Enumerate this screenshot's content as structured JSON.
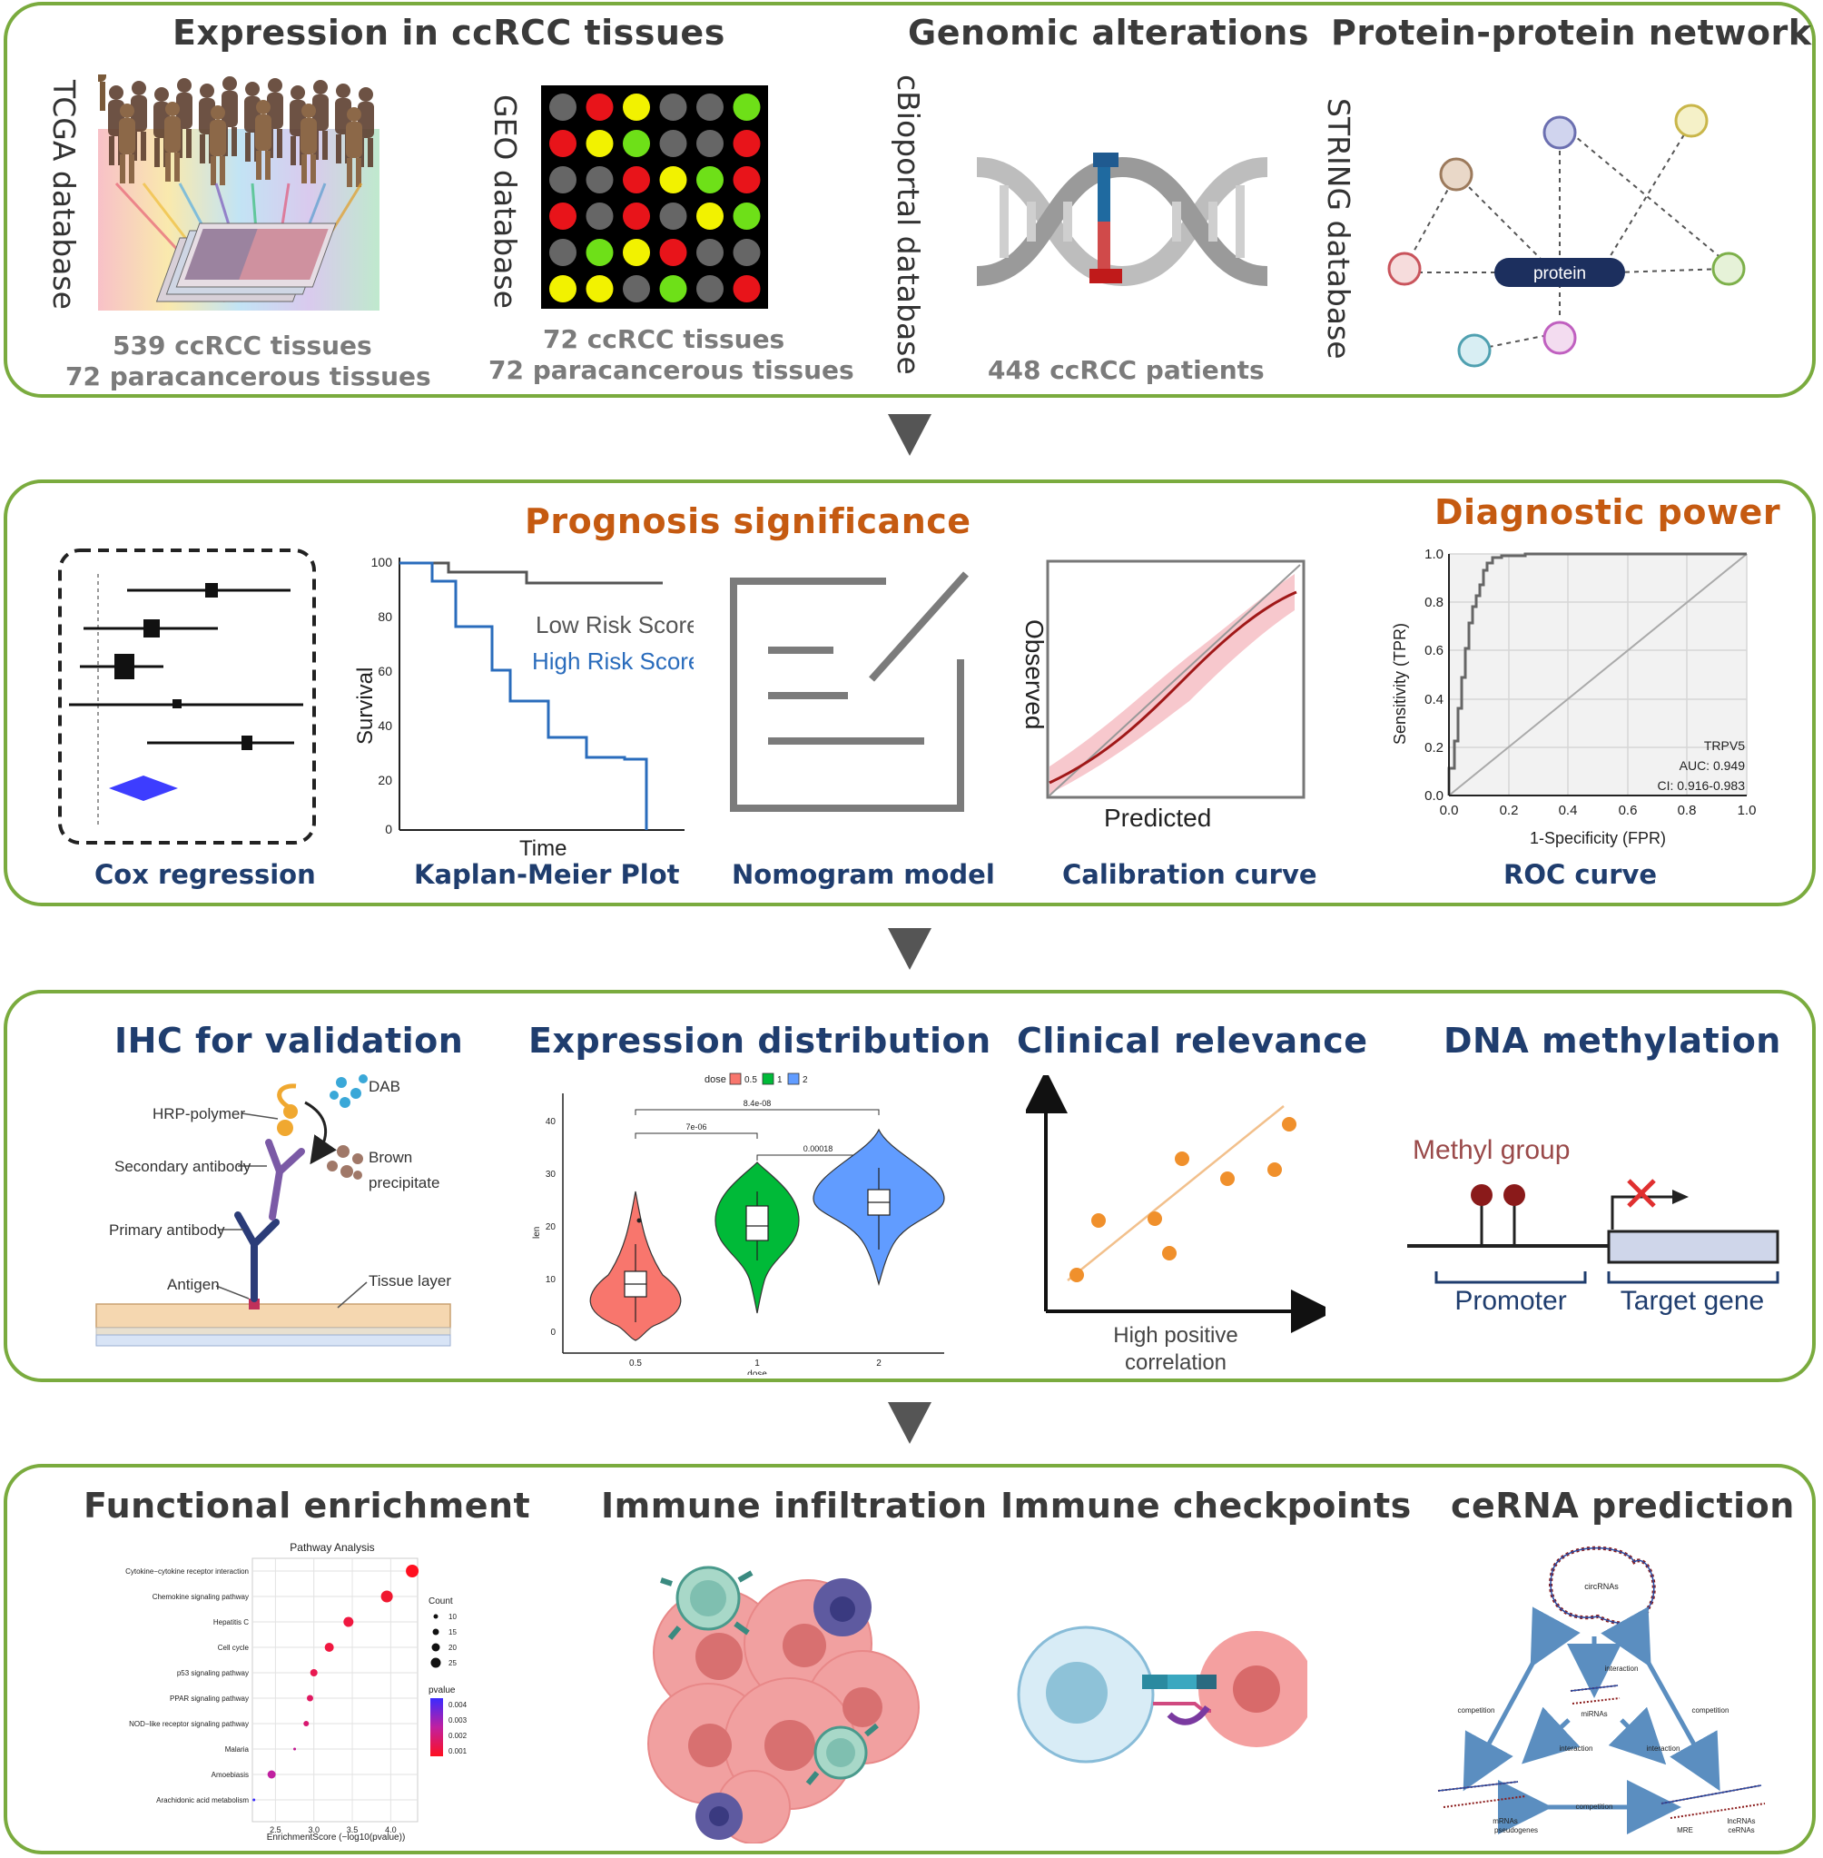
{
  "panel1": {
    "expression_title": "Expression in ccRCC tissues",
    "genomic_title": "Genomic alterations",
    "ppi_title": "Protein-protein network",
    "tcga_label": "TCGA database",
    "tcga_line1": "539 ccRCC tissues",
    "tcga_line2": "72  paracancerous tissues",
    "geo_label": "GEO database",
    "geo_line1": "72 ccRCC tissues",
    "geo_line2": "72  paracancerous tissues",
    "cbio_label": "cBioportal database",
    "cbio_line": "448 ccRCC patients",
    "string_label": "STRING database",
    "protein_label": "protein",
    "geo_grid_colors": [
      [
        "#666666",
        "#e8141a",
        "#f2f200",
        "#666666",
        "#666666",
        "#6ee018"
      ],
      [
        "#e8141a",
        "#f2f200",
        "#6ee018",
        "#666666",
        "#666666",
        "#e8141a"
      ],
      [
        "#666666",
        "#666666",
        "#e8141a",
        "#f2f200",
        "#6ee018",
        "#e8141a"
      ],
      [
        "#e8141a",
        "#666666",
        "#e8141a",
        "#666666",
        "#f2f200",
        "#6ee018"
      ],
      [
        "#666666",
        "#6ee018",
        "#f2f200",
        "#e8141a",
        "#666666",
        "#666666"
      ],
      [
        "#f2f200",
        "#f2f200",
        "#666666",
        "#6ee018",
        "#666666",
        "#e8141a"
      ]
    ]
  },
  "panel2": {
    "prognosis_title": "Prognosis significance",
    "diagnostic_title": "Diagnostic power",
    "cox_caption": "Cox regression",
    "km_caption": "Kaplan-Meier Plot",
    "nomogram_caption": "Nomogram model",
    "calibration_caption": "Calibration curve",
    "roc_caption": "ROC curve",
    "km_ylabel": "Survival",
    "km_xlabel": "Time",
    "km_ticks": [
      "100",
      "80",
      "60",
      "40",
      "20",
      "0"
    ],
    "km_low": "Low Risk Score",
    "km_high": "High Risk Score",
    "cal_ylabel": "Observed",
    "cal_xlabel": "Predicted",
    "roc_ylabel": "Sensitivity (TPR)",
    "roc_xlabel": "1-Specificity (FPR)",
    "roc_yticks": [
      "1.0",
      "0.8",
      "0.6",
      "0.4",
      "0.2",
      "0.0"
    ],
    "roc_xticks": [
      "0.0",
      "0.2",
      "0.4",
      "0.6",
      "0.8",
      "1.0"
    ],
    "roc_gene": "TRPV5",
    "roc_auc": "AUC: 0.949",
    "roc_ci": "CI: 0.916-0.983"
  },
  "panel3": {
    "ihc_title": "IHC for validation",
    "expr_title": "Expression distribution",
    "clinical_title": "Clinical relevance",
    "dna_title": "DNA methylation",
    "dab": "DAB",
    "hrp": "HRP-polymer",
    "secondary": "Secondary antibody",
    "brown1": "Brown",
    "brown2": "precipitate",
    "primary": "Primary antibody",
    "antigen": "Antigen",
    "tissue": "Tissue layer",
    "legend_title": "dose",
    "legend_items": [
      "0.5",
      "1",
      "2"
    ],
    "p1": "8.4e-08",
    "p2": "7e-06",
    "p3": "0.00018",
    "violin_yticks": [
      "40",
      "30",
      "20",
      "10",
      "0"
    ],
    "violin_xticks": [
      "0.5",
      "1",
      "2"
    ],
    "violin_ylabel": "len",
    "violin_xlabel": "dose",
    "corr_line1": "High positive",
    "corr_line2": "correlation",
    "methyl": "Methyl group",
    "promoter": "Promoter",
    "target": "Target gene"
  },
  "panel4": {
    "func_title": "Functional enrichment",
    "immune_title": "Immune infiltration",
    "checkpoint_title": "Immune checkpoints",
    "cerna_title": "ceRNA prediction",
    "pathway_title": "Pathway Analysis",
    "pathways": [
      "Cytokine−cytokine receptor interaction",
      "Chemokine signaling pathway",
      "Hepatitis C",
      "Cell cycle",
      "p53 signaling pathway",
      "PPAR signaling pathway",
      "NOD−like receptor signaling pathway",
      "Malaria",
      "Amoebiasis",
      "Arachidonic acid metabolism"
    ],
    "xticks": [
      "2.5",
      "3.0",
      "3.5",
      "4.0"
    ],
    "xlabel": "EnrichmentScore (−log10(pvalue))",
    "count_title": "Count",
    "count_values": [
      "10",
      "15",
      "20",
      "25"
    ],
    "pvalue_title": "pvalue",
    "pvalue_values": [
      "0.004",
      "0.003",
      "0.002",
      "0.001"
    ],
    "circ": "circRNAs",
    "interaction_top": "interaction",
    "competition_left": "competition",
    "competition_right": "competition",
    "mirnas": "miRNAs",
    "interaction_left": "interaction",
    "interaction_right": "interaction",
    "mrnas1": "mRNAs",
    "mrnas2": "pseudogenes",
    "competition_bottom": "competition",
    "mre": "MRE",
    "lnc1": "lncRNAs",
    "lnc2": "ceRNAs"
  }
}
